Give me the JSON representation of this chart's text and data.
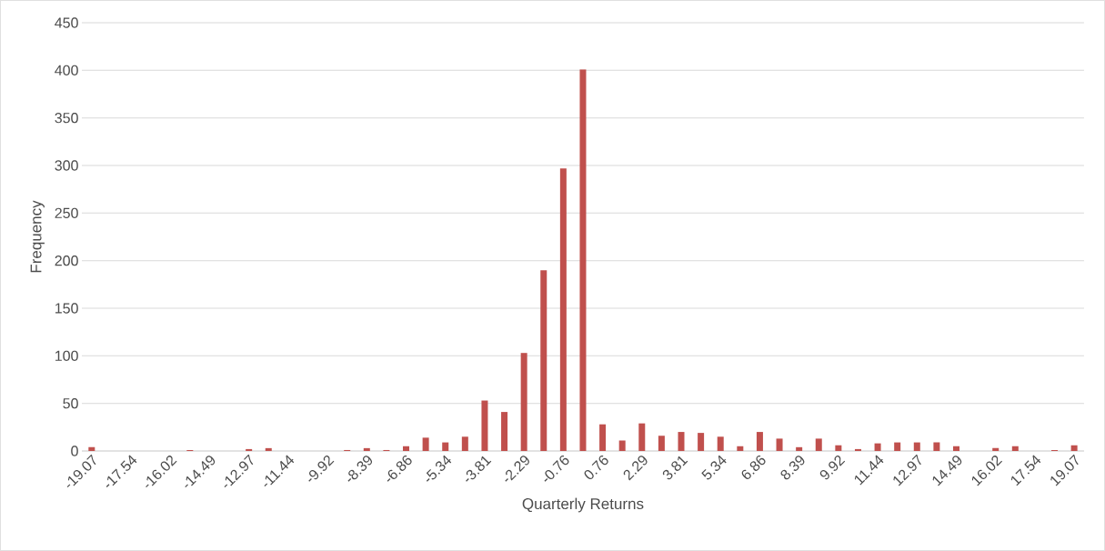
{
  "chart_data": {
    "type": "bar",
    "xlabel": "Quarterly Returns",
    "ylabel": "Frequency",
    "categories": [
      "-19.07",
      null,
      "-17.54",
      null,
      "-16.02",
      null,
      "-14.49",
      null,
      "-12.97",
      null,
      "-11.44",
      null,
      "-9.92",
      null,
      "-8.39",
      null,
      "-6.86",
      null,
      "-5.34",
      null,
      "-3.81",
      null,
      "-2.29",
      null,
      "-0.76",
      null,
      "0.76",
      null,
      "2.29",
      null,
      "3.81",
      null,
      "5.34",
      null,
      "6.86",
      null,
      "8.39",
      null,
      "9.92",
      null,
      "11.44",
      null,
      "12.97",
      null,
      "14.49",
      null,
      "16.02",
      null,
      "17.54",
      null,
      "19.07"
    ],
    "values": [
      4,
      0,
      0,
      0,
      0,
      1,
      0,
      0,
      2,
      3,
      0,
      0,
      0,
      1,
      3,
      1,
      5,
      14,
      9,
      15,
      53,
      41,
      103,
      190,
      297,
      401,
      28,
      11,
      29,
      16,
      20,
      19,
      15,
      5,
      20,
      13,
      4,
      13,
      6,
      2,
      8,
      9,
      9,
      9,
      5,
      0,
      3,
      5,
      0,
      1,
      6
    ],
    "color": "#c0504d",
    "ylim": [
      0,
      450
    ],
    "yticks": [
      0,
      50,
      100,
      150,
      200,
      250,
      300,
      350,
      400,
      450
    ],
    "grid": "y"
  }
}
